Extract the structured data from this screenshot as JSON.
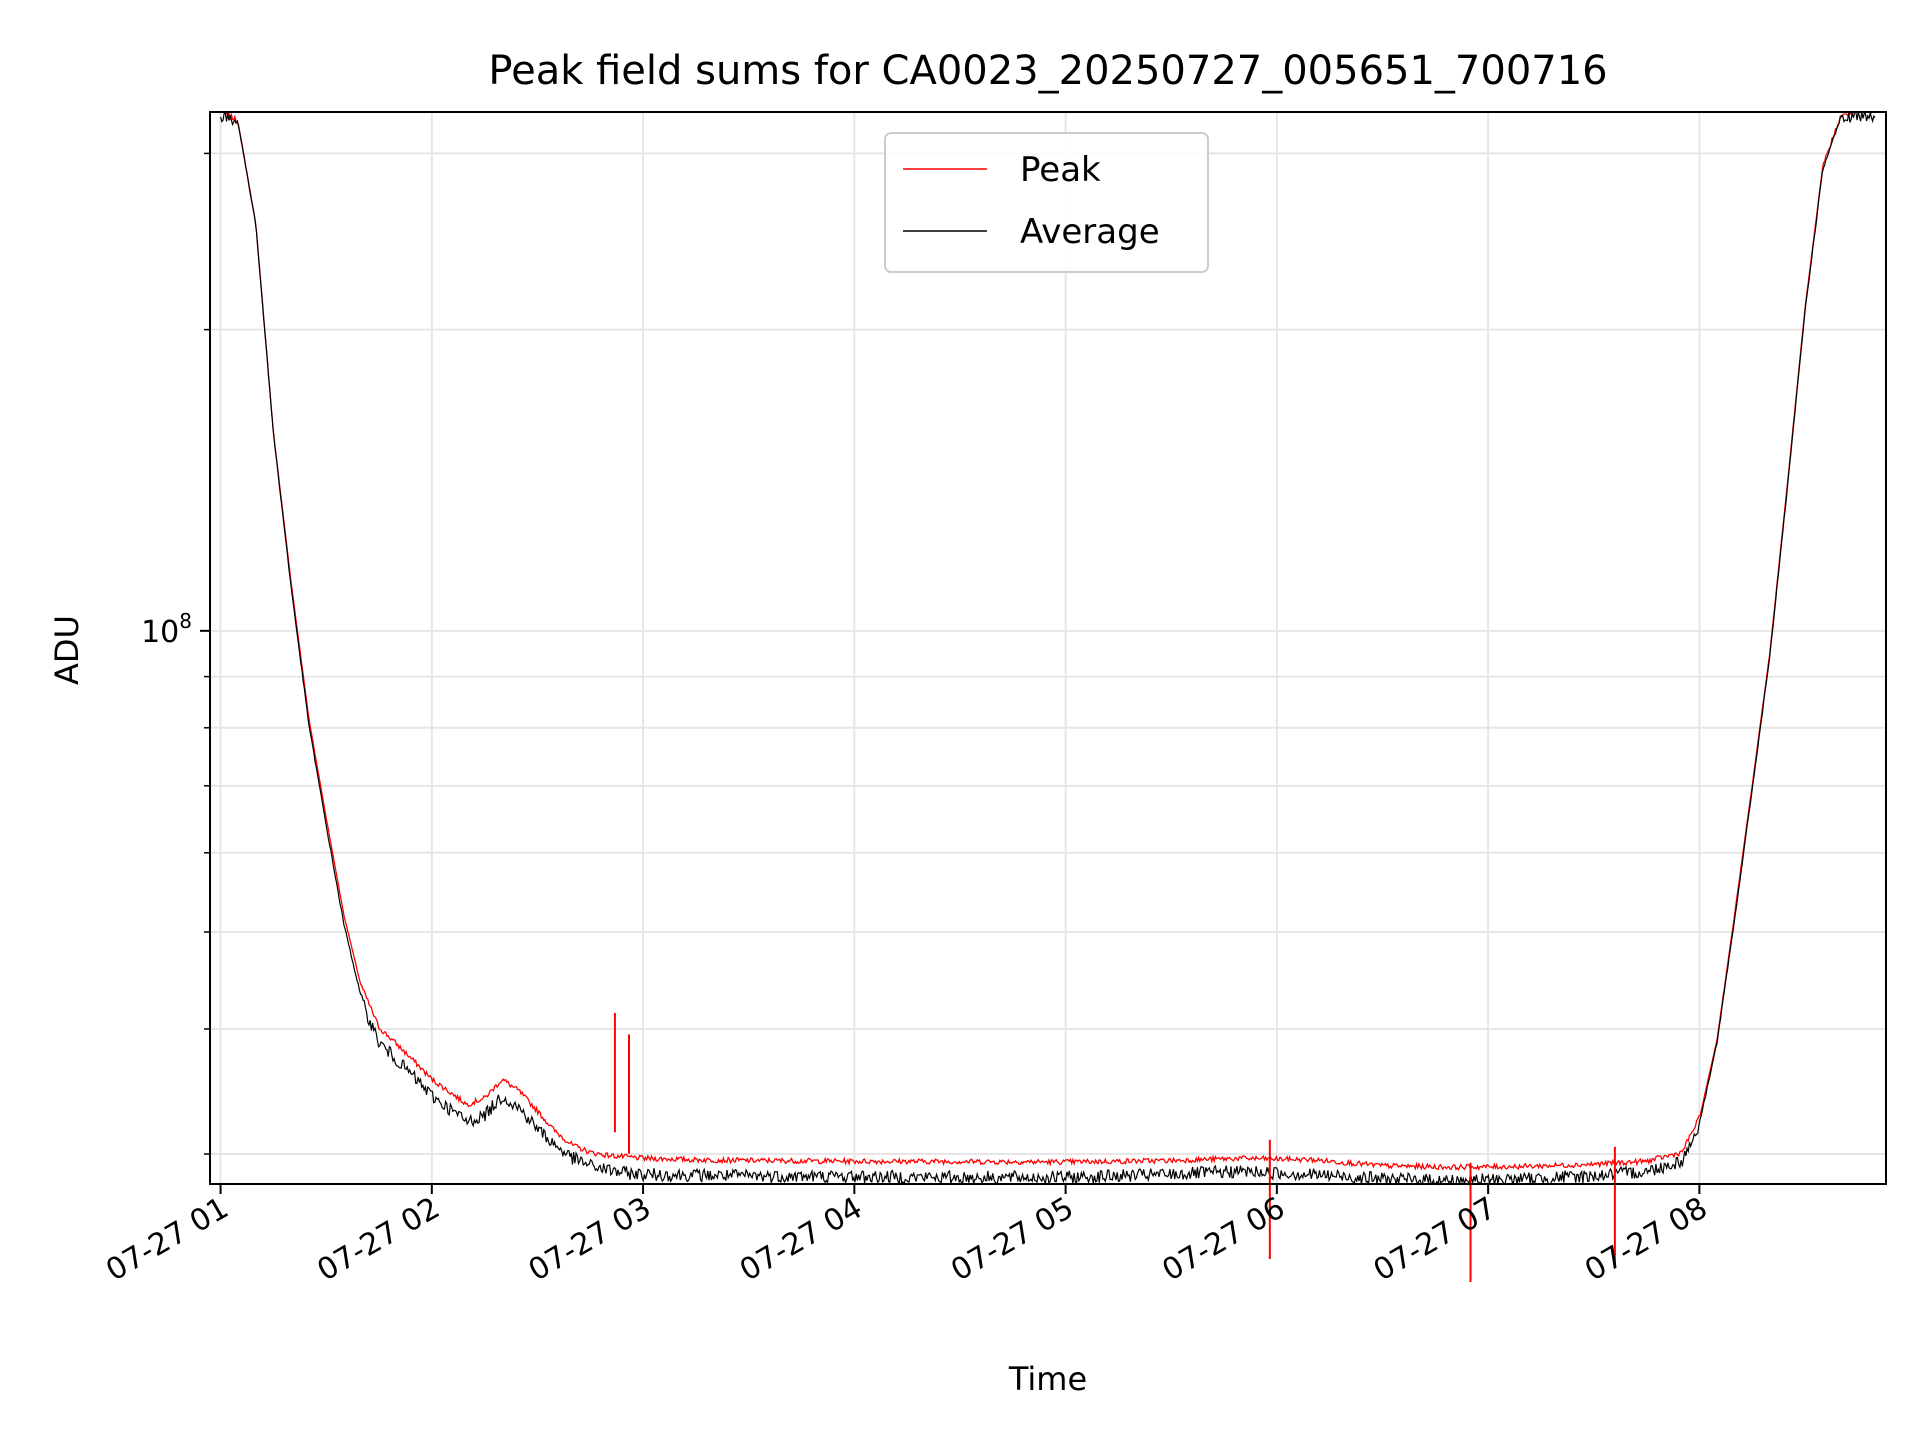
{
  "chart_data": {
    "type": "line",
    "title": "Peak field sums for CA0023_20250727_005651_700716",
    "xlabel": "Time",
    "ylabel": "ADU",
    "y_scale": "log",
    "ylim": [
      28000000,
      330000000
    ],
    "xlim": [
      "2025-07-27 00:57",
      "2025-07-27 08:53"
    ],
    "x_ticks": [
      {
        "time": "2025-07-27 01:00",
        "label": "07-27 01"
      },
      {
        "time": "2025-07-27 02:00",
        "label": "07-27 02"
      },
      {
        "time": "2025-07-27 03:00",
        "label": "07-27 03"
      },
      {
        "time": "2025-07-27 04:00",
        "label": "07-27 04"
      },
      {
        "time": "2025-07-27 05:00",
        "label": "07-27 05"
      },
      {
        "time": "2025-07-27 06:00",
        "label": "07-27 06"
      },
      {
        "time": "2025-07-27 07:00",
        "label": "07-27 07"
      },
      {
        "time": "2025-07-27 08:00",
        "label": "07-27 08"
      }
    ],
    "y_major_ticks": [
      {
        "value": 100000000,
        "base": "10",
        "exp": "8"
      }
    ],
    "y_minor_ticks": [
      30000000,
      40000000,
      50000000,
      60000000,
      70000000,
      80000000,
      90000000,
      200000000,
      300000000
    ],
    "grid": true,
    "legend": {
      "position": "upper center"
    },
    "series": [
      {
        "name": "Peak",
        "color": "#ff0000",
        "x": [
          "2025-07-27 01:00",
          "2025-07-27 01:05",
          "2025-07-27 01:10",
          "2025-07-27 01:15",
          "2025-07-27 01:20",
          "2025-07-27 01:25",
          "2025-07-27 01:30",
          "2025-07-27 01:35",
          "2025-07-27 01:40",
          "2025-07-27 01:45",
          "2025-07-27 01:50",
          "2025-07-27 01:55",
          "2025-07-27 02:00",
          "2025-07-27 02:05",
          "2025-07-27 02:10",
          "2025-07-27 02:15",
          "2025-07-27 02:20",
          "2025-07-27 02:25",
          "2025-07-27 02:30",
          "2025-07-27 02:35",
          "2025-07-27 02:40",
          "2025-07-27 02:45",
          "2025-07-27 02:50",
          "2025-07-27 02:55",
          "2025-07-27 03:00",
          "2025-07-27 03:15",
          "2025-07-27 03:30",
          "2025-07-27 04:00",
          "2025-07-27 04:30",
          "2025-07-27 05:00",
          "2025-07-27 05:30",
          "2025-07-27 05:50",
          "2025-07-27 06:10",
          "2025-07-27 06:30",
          "2025-07-27 06:50",
          "2025-07-27 07:10",
          "2025-07-27 07:30",
          "2025-07-27 07:45",
          "2025-07-27 07:55",
          "2025-07-27 08:00",
          "2025-07-27 08:05",
          "2025-07-27 08:10",
          "2025-07-27 08:15",
          "2025-07-27 08:20",
          "2025-07-27 08:25",
          "2025-07-27 08:30",
          "2025-07-27 08:35",
          "2025-07-27 08:40",
          "2025-07-27 08:45",
          "2025-07-27 08:50"
        ],
        "y": [
          330000000,
          322000000,
          255000000,
          158000000,
          112000000,
          82000000,
          65000000,
          52000000,
          44000000,
          40000000,
          38500000,
          37000000,
          35500000,
          34500000,
          33500000,
          34000000,
          35500000,
          34500000,
          33000000,
          31500000,
          30500000,
          30000000,
          29800000,
          29700000,
          29600000,
          29500000,
          29450000,
          29400000,
          29380000,
          29350000,
          29450000,
          29600000,
          29500000,
          29100000,
          29000000,
          29050000,
          29200000,
          29400000,
          30000000,
          32500000,
          39000000,
          52000000,
          70000000,
          95000000,
          140000000,
          210000000,
          290000000,
          325000000,
          330000000,
          330000000
        ],
        "spikes": [
          {
            "x": "2025-07-27 02:52",
            "y": 41500000
          },
          {
            "x": "2025-07-27 02:56",
            "y": 39500000
          },
          {
            "x": "2025-07-27 05:58",
            "y": 31000000
          },
          {
            "x": "2025-07-27 06:55",
            "y": 29400000
          },
          {
            "x": "2025-07-27 07:36",
            "y": 30500000
          }
        ]
      },
      {
        "name": "Average",
        "color": "#000000",
        "x": [
          "2025-07-27 01:00",
          "2025-07-27 01:05",
          "2025-07-27 01:10",
          "2025-07-27 01:15",
          "2025-07-27 01:20",
          "2025-07-27 01:25",
          "2025-07-27 01:30",
          "2025-07-27 01:35",
          "2025-07-27 01:40",
          "2025-07-27 01:45",
          "2025-07-27 01:50",
          "2025-07-27 01:55",
          "2025-07-27 02:00",
          "2025-07-27 02:05",
          "2025-07-27 02:10",
          "2025-07-27 02:15",
          "2025-07-27 02:20",
          "2025-07-27 02:25",
          "2025-07-27 02:30",
          "2025-07-27 02:35",
          "2025-07-27 02:40",
          "2025-07-27 02:45",
          "2025-07-27 02:50",
          "2025-07-27 02:55",
          "2025-07-27 03:00",
          "2025-07-27 03:15",
          "2025-07-27 03:30",
          "2025-07-27 04:00",
          "2025-07-27 04:30",
          "2025-07-27 05:00",
          "2025-07-27 05:30",
          "2025-07-27 05:50",
          "2025-07-27 06:10",
          "2025-07-27 06:30",
          "2025-07-27 06:50",
          "2025-07-27 07:10",
          "2025-07-27 07:30",
          "2025-07-27 07:45",
          "2025-07-27 07:55",
          "2025-07-27 08:00",
          "2025-07-27 08:05",
          "2025-07-27 08:10",
          "2025-07-27 08:15",
          "2025-07-27 08:20",
          "2025-07-27 08:25",
          "2025-07-27 08:30",
          "2025-07-27 08:35",
          "2025-07-27 08:40",
          "2025-07-27 08:45",
          "2025-07-27 08:50"
        ],
        "y": [
          330000000,
          322000000,
          255000000,
          158000000,
          111000000,
          81000000,
          64000000,
          51000000,
          43000000,
          39000000,
          37500000,
          36000000,
          34500000,
          33500000,
          32500000,
          33000000,
          34500000,
          33500000,
          32000000,
          30800000,
          29900000,
          29400000,
          29100000,
          28900000,
          28800000,
          28750000,
          28700000,
          28650000,
          28600000,
          28600000,
          28800000,
          29000000,
          28800000,
          28500000,
          28400000,
          28500000,
          28700000,
          29000000,
          29700000,
          32200000,
          38800000,
          51500000,
          69500000,
          94500000,
          139000000,
          209000000,
          289000000,
          325000000,
          330000000,
          330000000
        ]
      }
    ]
  }
}
